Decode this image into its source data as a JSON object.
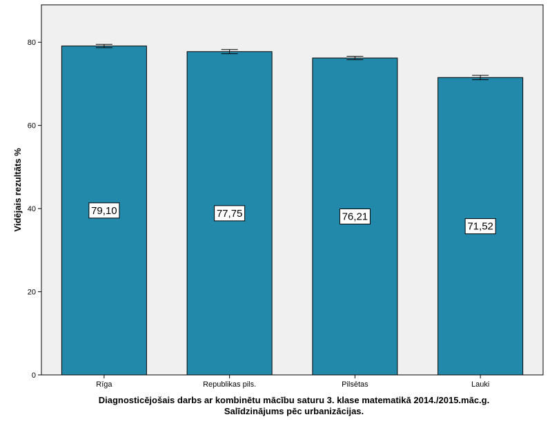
{
  "chart_data": {
    "type": "bar",
    "categories": [
      "Rīga",
      "Republikas pils.",
      "Pilsētas",
      "Lauki"
    ],
    "values": [
      79.1,
      77.75,
      76.21,
      71.52
    ],
    "data_labels": [
      "79,10",
      "77,75",
      "76,21",
      "71,52"
    ],
    "error_low": [
      78.7,
      77.25,
      75.8,
      71.0
    ],
    "error_high": [
      79.5,
      78.25,
      76.62,
      72.04
    ],
    "ylabel": "Vidējais rezultāts %",
    "xlabel_lines": [
      "Diagnosticējošais darbs ar kombinētu mācību saturu 3. klase matematikā 2014./2015.māc.g.",
      "Salīdzinājums pēc urbanizācijas."
    ],
    "yticks": [
      0,
      20,
      40,
      60,
      80
    ],
    "ylim": [
      0,
      89
    ],
    "grid": false,
    "bar_color": "#2389ab",
    "plot_background": "#f0f0f0"
  }
}
